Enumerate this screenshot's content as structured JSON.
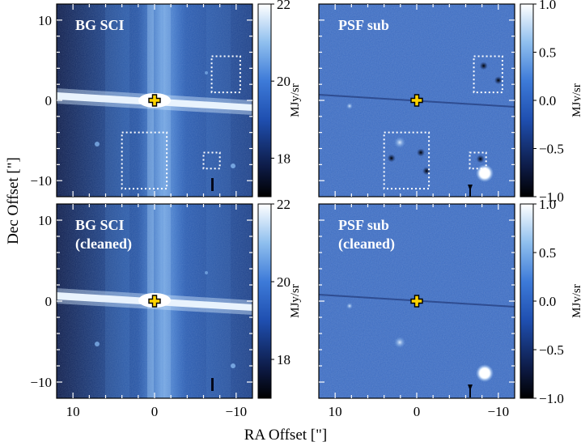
{
  "figure": {
    "xlabel": "RA Offset [\"]",
    "ylabel": "Dec Offset [\"]"
  },
  "colors": {
    "field_dark": "#0e1c4a",
    "field_mid": "#2a5ab8",
    "field_light": "#9ec8f2",
    "psf_field": "#3c6fc8",
    "marker_fill": "#ffd400",
    "marker_edge": "#000000",
    "box_stroke": "#ffffff"
  },
  "chart_data": [
    {
      "type": "image",
      "panel": "top-left",
      "label_lines": [
        "BG SCI"
      ],
      "image": "bg_sci",
      "x_range": [
        12,
        -12
      ],
      "y_range": [
        -12,
        12
      ],
      "xticks": [],
      "yticks": [
        -10,
        0,
        10
      ],
      "colorbar": {
        "range": [
          17,
          22
        ],
        "ticks": [
          18,
          20,
          22
        ],
        "label": "MJy/sr"
      },
      "marker": {
        "ra": 0,
        "dec": 0,
        "symbol": "plus",
        "color": "#ffd400"
      },
      "boxes": [
        {
          "ra": [
            -7.0,
            -10.5
          ],
          "dec": [
            1.0,
            5.5
          ]
        },
        {
          "ra": [
            -6.0,
            -8.0
          ],
          "dec": [
            -6.5,
            -8.5
          ]
        },
        {
          "ra": [
            4.0,
            -1.5
          ],
          "dec": [
            -4.0,
            -11.0
          ]
        }
      ]
    },
    {
      "type": "image",
      "panel": "top-right",
      "label_lines": [
        "PSF sub"
      ],
      "image": "psf_sub",
      "x_range": [
        12,
        -12
      ],
      "y_range": [
        -12,
        12
      ],
      "xticks": [],
      "yticks": [],
      "colorbar": {
        "range": [
          -1,
          1
        ],
        "ticks": [
          -1.0,
          -0.5,
          0.0,
          0.5,
          1.0
        ],
        "tick_labels": [
          "−1.0",
          "−0.5",
          "0.0",
          "0.5",
          "1.0"
        ],
        "label": "MJy/sr"
      },
      "marker": {
        "ra": 0,
        "dec": 0,
        "symbol": "plus",
        "color": "#ffd400"
      },
      "boxes": [
        {
          "ra": [
            -7.0,
            -10.5
          ],
          "dec": [
            1.0,
            5.5
          ]
        },
        {
          "ra": [
            -6.5,
            -8.5
          ],
          "dec": [
            -6.5,
            -8.5
          ]
        },
        {
          "ra": [
            4.0,
            -1.5
          ],
          "dec": [
            -4.0,
            -11.0
          ]
        }
      ]
    },
    {
      "type": "image",
      "panel": "bottom-left",
      "label_lines": [
        "BG SCI",
        "(cleaned)"
      ],
      "image": "bg_sci",
      "x_range": [
        12,
        -12
      ],
      "y_range": [
        -12,
        12
      ],
      "xticks": [
        10,
        0,
        -10
      ],
      "tick_labels_x": [
        "10",
        "0",
        "−10"
      ],
      "yticks": [
        -10,
        0,
        10
      ],
      "colorbar": {
        "range": [
          17,
          22
        ],
        "ticks": [
          18,
          20,
          22
        ],
        "label": "MJy/sr"
      },
      "marker": {
        "ra": 0,
        "dec": 0,
        "symbol": "plus",
        "color": "#ffd400"
      },
      "boxes": []
    },
    {
      "type": "image",
      "panel": "bottom-right",
      "label_lines": [
        "PSF sub",
        "(cleaned)"
      ],
      "image": "psf_sub",
      "x_range": [
        12,
        -12
      ],
      "y_range": [
        -12,
        12
      ],
      "xticks": [
        10,
        0,
        -10
      ],
      "tick_labels_x": [
        "10",
        "0",
        "−10"
      ],
      "yticks": [],
      "colorbar": {
        "range": [
          -1,
          1
        ],
        "ticks": [
          -1.0,
          -0.5,
          0.0,
          0.5,
          1.0
        ],
        "tick_labels": [
          "−1.0",
          "−0.5",
          "0.0",
          "0.5",
          "1.0"
        ],
        "label": "MJy/sr"
      },
      "marker": {
        "ra": 0,
        "dec": 0,
        "symbol": "plus",
        "color": "#ffd400"
      },
      "boxes": []
    }
  ]
}
